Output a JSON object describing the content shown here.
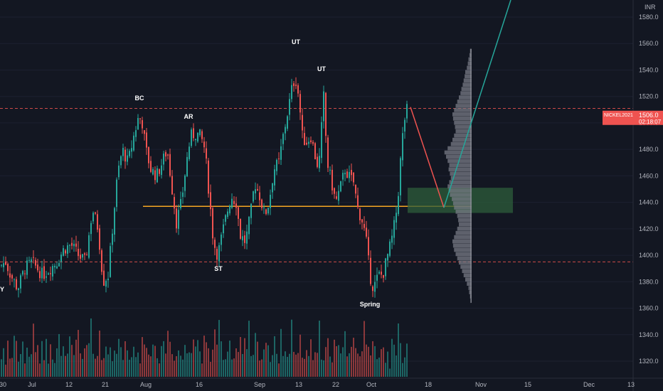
{
  "currency_label": "INR",
  "colors": {
    "background": "#131722",
    "up": "#26a69a",
    "down": "#ef5350",
    "support_line": "#f5a623",
    "dashed_levels": "#ef5350",
    "target_zone": "#2e5d3b",
    "projection_line": "#26a69a",
    "profile": "#787b86"
  },
  "price_badge": {
    "symbol": "NICKEL2021",
    "price": "1506.0",
    "countdown": "02:18:07"
  },
  "chart_data": {
    "type": "candlestick",
    "title": "",
    "ylim": [
      1312,
      1590
    ],
    "y_ticks": [
      "1320.0",
      "1340.0",
      "1360.0",
      "1380.0",
      "1400.0",
      "1420.0",
      "1440.0",
      "1460.0",
      "1480.0",
      "1500.0",
      "1520.0",
      "1540.0",
      "1560.0",
      "1580.0"
    ],
    "x_ticks": [
      "30",
      "Jul",
      "12",
      "21",
      "Aug",
      "16",
      "Sep",
      "13",
      "22",
      "Oct",
      "18",
      "Nov",
      "15",
      "Dec",
      "13"
    ],
    "annotations": [
      "Y",
      "BC",
      "AR",
      "ST",
      "UT",
      "UT",
      "Spring"
    ],
    "horizontal_levels": [
      {
        "kind": "dashed",
        "price": 1511
      },
      {
        "kind": "dashed",
        "price": 1395
      },
      {
        "kind": "solid",
        "price": 1437
      }
    ],
    "target_zone": {
      "price_low": 1432,
      "price_high": 1451
    },
    "price_path": [
      [
        0,
        1392
      ],
      [
        8,
        1395
      ],
      [
        15,
        1385
      ],
      [
        25,
        1375
      ],
      [
        35,
        1390
      ],
      [
        45,
        1395
      ],
      [
        60,
        1385
      ],
      [
        70,
        1390
      ],
      [
        80,
        1395
      ],
      [
        90,
        1405
      ],
      [
        100,
        1408
      ],
      [
        110,
        1400
      ],
      [
        120,
        1395
      ],
      [
        130,
        1435
      ],
      [
        138,
        1420
      ],
      [
        145,
        1380
      ],
      [
        152,
        1385
      ],
      [
        158,
        1420
      ],
      [
        165,
        1460
      ],
      [
        172,
        1480
      ],
      [
        180,
        1470
      ],
      [
        188,
        1490
      ],
      [
        195,
        1505
      ],
      [
        200,
        1500
      ],
      [
        205,
        1480
      ],
      [
        212,
        1465
      ],
      [
        220,
        1460
      ],
      [
        228,
        1470
      ],
      [
        235,
        1480
      ],
      [
        242,
        1450
      ],
      [
        248,
        1425
      ],
      [
        255,
        1440
      ],
      [
        262,
        1470
      ],
      [
        268,
        1490
      ],
      [
        275,
        1492
      ],
      [
        282,
        1490
      ],
      [
        288,
        1480
      ],
      [
        295,
        1440
      ],
      [
        300,
        1410
      ],
      [
        306,
        1400
      ],
      [
        312,
        1415
      ],
      [
        318,
        1430
      ],
      [
        325,
        1445
      ],
      [
        332,
        1440
      ],
      [
        338,
        1415
      ],
      [
        345,
        1410
      ],
      [
        352,
        1430
      ],
      [
        358,
        1455
      ],
      [
        365,
        1445
      ],
      [
        372,
        1430
      ],
      [
        378,
        1440
      ],
      [
        385,
        1465
      ],
      [
        392,
        1470
      ],
      [
        398,
        1490
      ],
      [
        405,
        1510
      ],
      [
        410,
        1525
      ],
      [
        415,
        1535
      ],
      [
        420,
        1520
      ],
      [
        425,
        1490
      ],
      [
        430,
        1485
      ],
      [
        437,
        1490
      ],
      [
        443,
        1475
      ],
      [
        448,
        1465
      ],
      [
        455,
        1520
      ],
      [
        460,
        1470
      ],
      [
        466,
        1455
      ],
      [
        472,
        1440
      ],
      [
        478,
        1450
      ],
      [
        485,
        1465
      ],
      [
        490,
        1460
      ],
      [
        497,
        1455
      ],
      [
        503,
        1435
      ],
      [
        510,
        1425
      ],
      [
        515,
        1410
      ],
      [
        520,
        1385
      ],
      [
        525,
        1375
      ],
      [
        532,
        1385
      ],
      [
        538,
        1385
      ],
      [
        545,
        1400
      ],
      [
        550,
        1410
      ],
      [
        555,
        1425
      ],
      [
        559,
        1440
      ],
      [
        562,
        1465
      ],
      [
        566,
        1490
      ],
      [
        570,
        1508
      ],
      [
        574,
        1512
      ]
    ],
    "volume_levels": [
      0.3,
      0.5,
      0.2,
      0.6,
      0.4,
      0.3,
      0.7,
      0.5,
      0.3,
      0.4,
      0.6,
      0.2,
      0.5,
      0.4,
      0.3,
      0.8,
      0.5,
      0.4,
      0.3,
      0.6,
      0.4,
      0.5,
      0.3,
      0.7,
      0.4,
      0.3,
      0.5,
      0.6,
      0.3,
      0.4,
      0.5,
      0.3,
      0.6,
      0.4,
      0.3,
      0.5,
      0.7,
      0.4,
      0.3,
      0.6,
      0.4,
      0.5,
      0.9,
      0.4,
      0.3,
      0.5,
      0.6,
      0.4,
      0.3,
      0.5,
      0.4,
      0.6,
      0.3,
      0.4,
      0.5,
      0.7,
      0.4,
      0.3,
      0.5,
      0.6,
      0.4,
      0.3,
      0.5,
      0.4,
      0.6,
      0.3,
      0.5,
      0.4,
      0.7,
      0.4,
      0.3,
      0.6,
      0.5,
      0.4,
      0.3,
      0.5,
      0.6,
      0.4,
      0.8,
      0.5,
      0.4,
      0.3,
      0.5,
      0.6,
      0.4,
      0.3,
      0.5,
      0.4,
      0.6,
      0.3,
      0.5,
      0.4,
      0.7,
      0.4,
      0.3,
      0.6,
      0.5,
      0.4,
      0.3,
      0.5,
      0.6,
      0.4,
      0.9,
      0.5,
      0.4,
      0.3,
      0.5,
      0.6,
      0.4,
      0.3,
      0.5,
      0.4,
      0.6,
      0.3,
      0.5,
      0.4,
      0.7,
      0.4,
      0.3,
      0.6,
      0.5,
      0.4,
      0.3,
      0.5,
      0.6,
      0.4,
      0.3,
      0.5,
      0.7,
      0.4,
      0.3,
      0.6,
      0.5,
      0.4,
      0.3,
      0.5,
      0.9,
      0.4,
      0.3,
      0.5,
      0.6,
      0.4,
      0.3,
      0.5,
      0.4,
      0.6,
      0.3,
      0.5,
      0.4,
      0.7,
      0.4,
      0.3,
      0.6,
      0.5,
      0.4,
      0.3,
      0.5,
      0.6,
      0.4,
      0.3,
      0.5,
      0.7,
      0.4,
      0.3,
      0.6,
      0.5,
      0.4,
      0.3,
      0.5,
      0.6,
      0.8,
      0.5,
      0.4,
      0.3,
      0.5,
      0.6,
      0.4,
      0.3,
      0.5,
      0.4
    ],
    "volume_profile": [
      0.05,
      0.07,
      0.1,
      0.12,
      0.15,
      0.2,
      0.22,
      0.25,
      0.28,
      0.32,
      0.35,
      0.4,
      0.45,
      0.5,
      0.55,
      0.6,
      0.58,
      0.55,
      0.52,
      0.5,
      0.55,
      0.6,
      0.65,
      0.75,
      0.85,
      0.8,
      0.75,
      0.7,
      0.72,
      0.68,
      0.65,
      0.7,
      0.75,
      0.72,
      0.68,
      0.62,
      0.58,
      0.55,
      0.5,
      0.45,
      0.42,
      0.4,
      0.45,
      0.5,
      0.55,
      0.6,
      0.58,
      0.55,
      0.5,
      0.45,
      0.4,
      0.35,
      0.3,
      0.25,
      0.2,
      0.15,
      0.1,
      0.08,
      0.05,
      0.03
    ]
  }
}
